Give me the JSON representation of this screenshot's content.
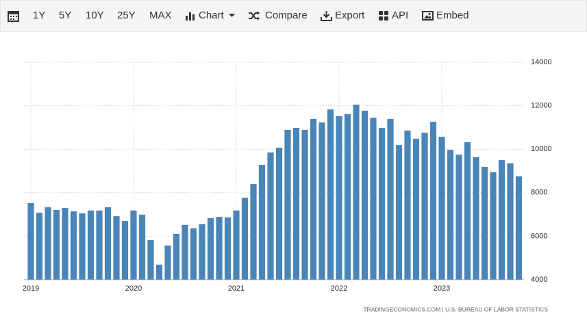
{
  "toolbar": {
    "items": [
      "1Y",
      "5Y",
      "10Y",
      "25Y",
      "MAX",
      "Chart",
      "Compare",
      "Export",
      "API",
      "Embed"
    ]
  },
  "chart_data": {
    "type": "bar",
    "categories": [
      "2019",
      null,
      null,
      null,
      null,
      null,
      null,
      null,
      null,
      null,
      null,
      null,
      "2020",
      null,
      null,
      null,
      null,
      null,
      null,
      null,
      null,
      null,
      null,
      null,
      "2021",
      null,
      null,
      null,
      null,
      null,
      null,
      null,
      null,
      null,
      null,
      null,
      "2022",
      null,
      null,
      null,
      null,
      null,
      null,
      null,
      null,
      null,
      null,
      null,
      "2023",
      null,
      null,
      null,
      null,
      null,
      null,
      null,
      null,
      null
    ],
    "values": [
      7520,
      7080,
      7330,
      7210,
      7300,
      7140,
      7050,
      7180,
      7180,
      7330,
      6920,
      6700,
      7180,
      6990,
      5820,
      4690,
      5570,
      6110,
      6520,
      6360,
      6550,
      6830,
      6890,
      6860,
      7180,
      7770,
      8400,
      9280,
      9850,
      10070,
      10890,
      10980,
      10890,
      11390,
      11230,
      11830,
      11520,
      11610,
      12050,
      11770,
      11450,
      10980,
      11390,
      10190,
      10860,
      10480,
      10760,
      11260,
      10570,
      9970,
      9750,
      10320,
      9630,
      9190,
      8940,
      9500,
      9350,
      8750
    ],
    "color": "#4a85b9",
    "ylim": [
      4000,
      14000
    ],
    "yticks": [
      4000,
      6000,
      8000,
      10000,
      12000,
      14000
    ],
    "grid": true,
    "source": "TRADINGECONOMICS.COM  |  U.S. BUREAU OF LABOR STATISTICS"
  }
}
